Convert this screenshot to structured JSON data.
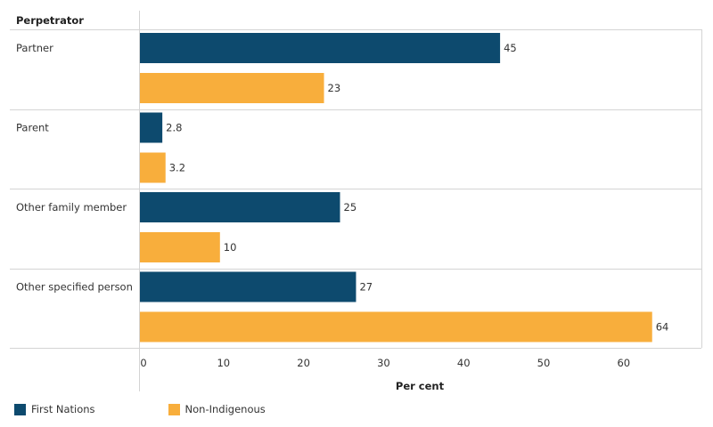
{
  "chart_data": {
    "type": "bar",
    "orientation": "horizontal",
    "category_header": "Perpetrator",
    "categories": [
      "Partner",
      "Parent",
      "Other family member",
      "Other specified person"
    ],
    "series": [
      {
        "name": "First Nations",
        "color": "#0d4a6e",
        "values": [
          45,
          2.8,
          25,
          27
        ]
      },
      {
        "name": "Non-Indigenous",
        "color": "#f8ae3c",
        "values": [
          23,
          3.2,
          10,
          64
        ]
      }
    ],
    "xlabel": "Per cent",
    "xlim": [
      0,
      70
    ],
    "xticks": [
      0,
      10,
      20,
      30,
      40,
      50,
      60
    ],
    "grid": false,
    "legend_position": "bottom-left"
  }
}
